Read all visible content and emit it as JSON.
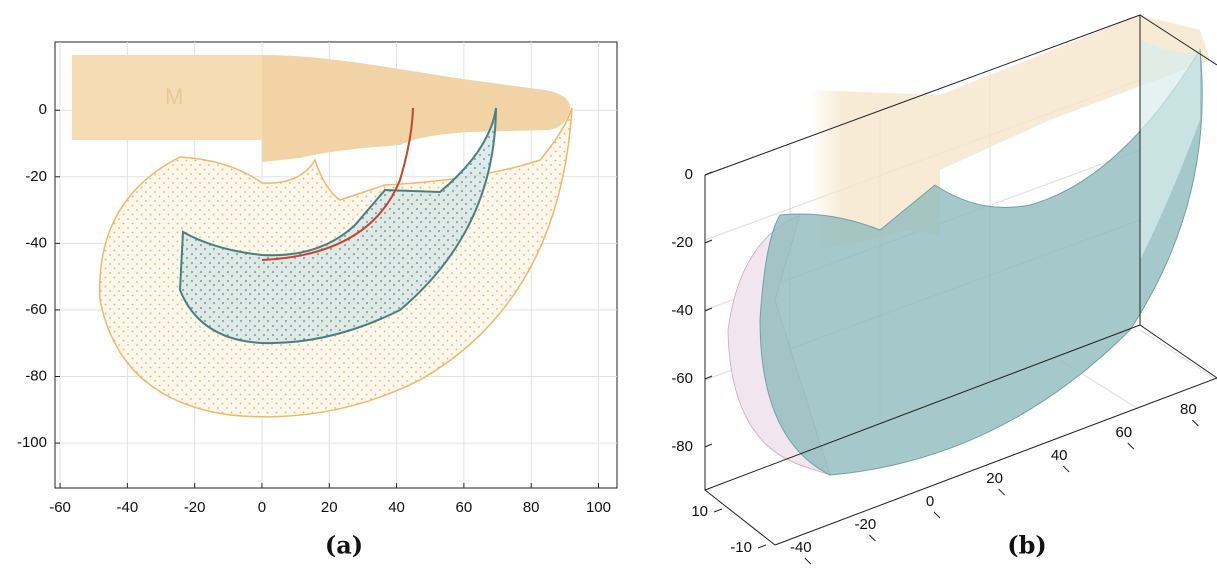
{
  "chart_data": [
    {
      "type": "region",
      "caption": "(a)",
      "xlim": [
        -61.5,
        105.5
      ],
      "ylim": [
        -113.5,
        20.5
      ],
      "xticks": [
        -60,
        -40,
        -20,
        0,
        20,
        40,
        60,
        80,
        100
      ],
      "yticks": [
        0,
        -20,
        -40,
        -60,
        -80,
        -100
      ],
      "grid": true
    },
    {
      "type": "region3d",
      "caption": "(b)",
      "xlim": [
        -48,
        92
      ],
      "ylim": [
        -15,
        15
      ],
      "zlim": [
        -92,
        0
      ],
      "xticks": [
        -40,
        -20,
        0,
        20,
        40,
        60,
        80
      ],
      "yticks": [
        10,
        -10
      ],
      "zticks": [
        0,
        -20,
        -40,
        -60,
        -80
      ],
      "grid": true
    }
  ]
}
